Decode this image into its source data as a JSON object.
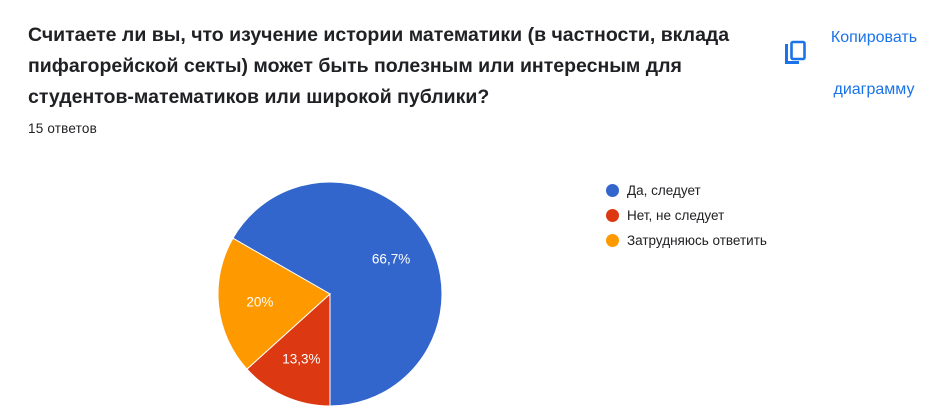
{
  "question": {
    "title": "Считаете ли вы, что изучение истории математики (в частности, вклада пифагорейской секты) может быть полезным или интересным для студентов-математиков или широкой публики?",
    "response_count": "15 ответов"
  },
  "copy_button": {
    "label": "Копировать диаграмму",
    "icon": "copy-icon",
    "color": "#1a73e8"
  },
  "chart_data": {
    "type": "pie",
    "slices": [
      {
        "label": "Да, следует",
        "value": 66.7,
        "display": "66,7%",
        "color": "#3366cc"
      },
      {
        "label": "Нет, не следует",
        "value": 13.3,
        "display": "13,3%",
        "color": "#dc3912"
      },
      {
        "label": "Затрудняюсь ответить",
        "value": 20,
        "display": "20%",
        "color": "#ff9900"
      }
    ],
    "legend_position": "right"
  }
}
